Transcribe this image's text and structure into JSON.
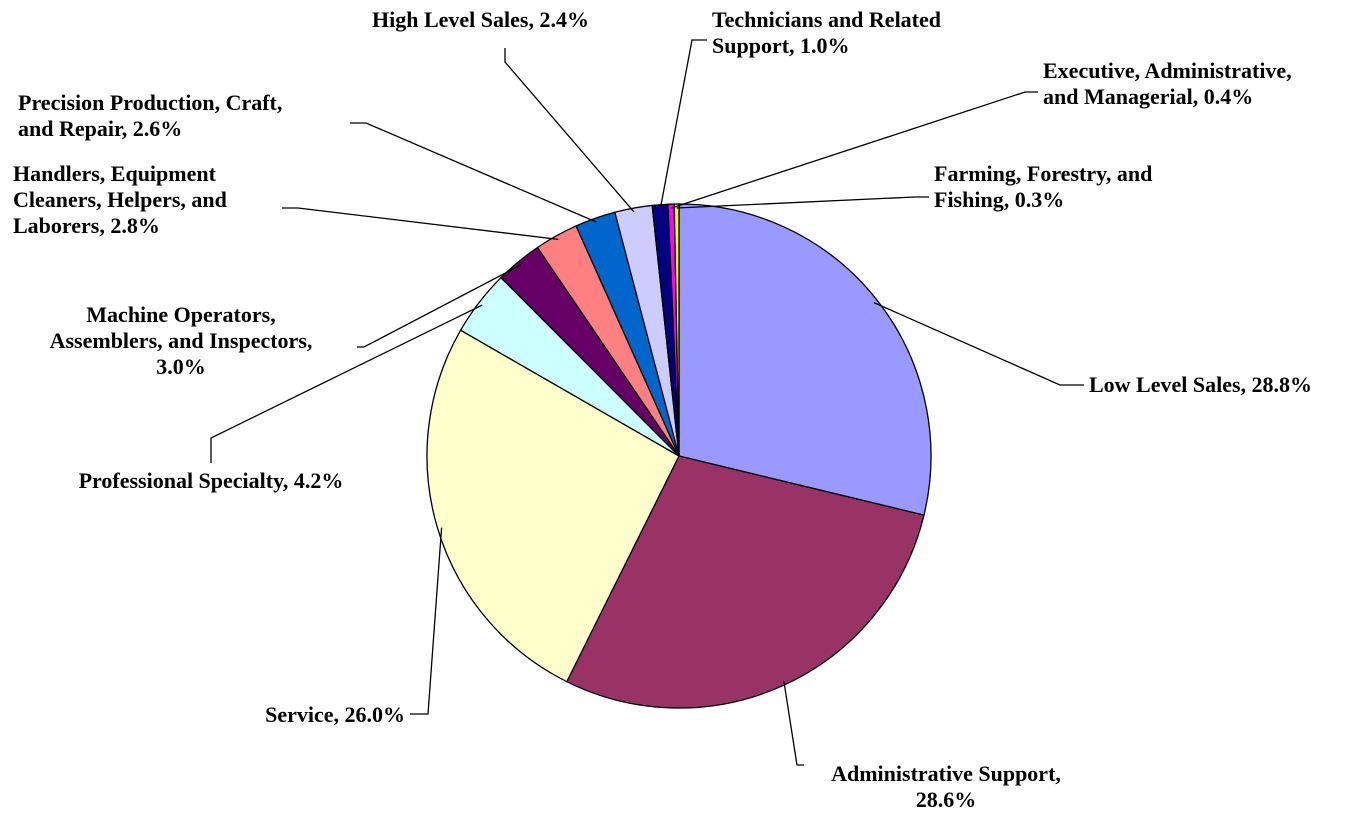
{
  "chart_data": {
    "type": "pie",
    "title": "",
    "start_angle_deg": 0,
    "direction": "clockwise",
    "legend": "none",
    "slices": [
      {
        "label": "Low Level Sales",
        "value": 28.8,
        "color": "#9999ff",
        "text_lines": [
          "Low Level Sales, 28.8%"
        ]
      },
      {
        "label": "Administrative Support",
        "value": 28.6,
        "color": "#993366",
        "text_lines": [
          "Administrative Support,",
          "28.6%"
        ]
      },
      {
        "label": "Service",
        "value": 26.0,
        "color": "#ffffcc",
        "text_lines": [
          "Service, 26.0%"
        ]
      },
      {
        "label": "Professional Specialty",
        "value": 4.2,
        "color": "#ccffff",
        "text_lines": [
          "Professional Specialty, 4.2%"
        ]
      },
      {
        "label": "Machine Operators, Assemblers, and Inspectors",
        "value": 3.0,
        "color": "#660066",
        "text_lines": [
          "Machine Operators,",
          "Assemblers, and Inspectors,",
          "3.0%"
        ]
      },
      {
        "label": "Handlers, Equipment Cleaners, Helpers, and Laborers",
        "value": 2.8,
        "color": "#ff8080",
        "text_lines": [
          "Handlers, Equipment",
          "Cleaners, Helpers, and",
          "Laborers, 2.8%"
        ]
      },
      {
        "label": "Precision Production, Craft, and Repair",
        "value": 2.6,
        "color": "#0066cc",
        "text_lines": [
          "Precision Production, Craft,",
          "and Repair, 2.6%"
        ]
      },
      {
        "label": "High Level Sales",
        "value": 2.4,
        "color": "#ccccff",
        "text_lines": [
          "High Level Sales, 2.4%"
        ]
      },
      {
        "label": "Technicians and Related Support",
        "value": 1.0,
        "color": "#000080",
        "text_lines": [
          "Technicians and Related",
          "Support, 1.0%"
        ]
      },
      {
        "label": "Executive, Administrative, and Managerial",
        "value": 0.4,
        "color": "#ff00ff",
        "text_lines": [
          "Executive, Administrative,",
          "and Managerial, 0.4%"
        ]
      },
      {
        "label": "Farming, Forestry, and Fishing",
        "value": 0.3,
        "color": "#ffff00",
        "text_lines": [
          "Farming, Forestry, and",
          "Fishing, 0.3%"
        ]
      }
    ]
  }
}
